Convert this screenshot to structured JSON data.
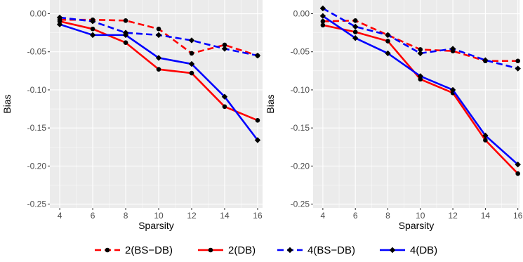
{
  "chart_data": [
    {
      "type": "line",
      "xlabel": "Sparsity",
      "ylabel": "Bias",
      "x": [
        4,
        6,
        8,
        10,
        12,
        14,
        16
      ],
      "xlim": [
        3.4,
        16.3
      ],
      "ylim": [
        -0.255,
        0.018
      ],
      "yticks": [
        0.0,
        -0.05,
        -0.1,
        -0.15,
        -0.2,
        -0.25
      ],
      "ytick_labels": [
        "0.00",
        "-0.05",
        "-0.10",
        "-0.15",
        "-0.20",
        "-0.25"
      ],
      "xtick_labels": [
        "4",
        "6",
        "8",
        "10",
        "12",
        "14",
        "16"
      ],
      "grid": true,
      "series": [
        {
          "name": "2(BS−DB)",
          "color": "#ff0000",
          "dash": "dashed",
          "marker": "circle",
          "values": [
            -0.008,
            -0.008,
            -0.009,
            -0.02,
            -0.052,
            -0.041,
            -0.055
          ]
        },
        {
          "name": "2(DB)",
          "color": "#ff0000",
          "dash": "solid",
          "marker": "circle",
          "values": [
            -0.01,
            -0.02,
            -0.038,
            -0.073,
            -0.078,
            -0.122,
            -0.14
          ]
        },
        {
          "name": "4(BS−DB)",
          "color": "#0000ff",
          "dash": "dashed",
          "marker": "diamond",
          "values": [
            -0.005,
            -0.01,
            -0.025,
            -0.028,
            -0.035,
            -0.046,
            -0.055
          ]
        },
        {
          "name": "4(DB)",
          "color": "#0000ff",
          "dash": "solid",
          "marker": "diamond",
          "values": [
            -0.014,
            -0.028,
            -0.028,
            -0.058,
            -0.066,
            -0.109,
            -0.166
          ]
        }
      ]
    },
    {
      "type": "line",
      "xlabel": "Sparsity",
      "ylabel": "Bias",
      "x": [
        4,
        6,
        8,
        10,
        12,
        14,
        16
      ],
      "xlim": [
        3.4,
        16.1
      ],
      "ylim": [
        -0.255,
        0.018
      ],
      "yticks": [
        0.0,
        -0.05,
        -0.1,
        -0.15,
        -0.2,
        -0.25
      ],
      "ytick_labels": [
        "0.00",
        "-0.05",
        "-0.10",
        "-0.15",
        "-0.20",
        "-0.25"
      ],
      "xtick_labels": [
        "4",
        "6",
        "8",
        "10",
        "12",
        "14",
        "16"
      ],
      "grid": true,
      "series": [
        {
          "name": "2(BS−DB)",
          "color": "#ff0000",
          "dash": "dashed",
          "marker": "circle",
          "values": [
            -0.01,
            -0.009,
            -0.028,
            -0.047,
            -0.049,
            -0.062,
            -0.062
          ]
        },
        {
          "name": "2(DB)",
          "color": "#ff0000",
          "dash": "solid",
          "marker": "circle",
          "values": [
            -0.015,
            -0.024,
            -0.036,
            -0.086,
            -0.104,
            -0.166,
            -0.21
          ]
        },
        {
          "name": "4(BS−DB)",
          "color": "#0000ff",
          "dash": "dashed",
          "marker": "diamond",
          "values": [
            0.007,
            -0.017,
            -0.028,
            -0.052,
            -0.046,
            -0.061,
            -0.072
          ]
        },
        {
          "name": "4(DB)",
          "color": "#0000ff",
          "dash": "solid",
          "marker": "diamond",
          "values": [
            -0.003,
            -0.032,
            -0.052,
            -0.082,
            -0.1,
            -0.16,
            -0.198
          ]
        }
      ]
    }
  ],
  "legend": {
    "placement": "bottom",
    "items": [
      {
        "label": "2(BS−DB)",
        "color": "#ff0000",
        "dash": "dashed",
        "marker": "circle"
      },
      {
        "label": "2(DB)",
        "color": "#ff0000",
        "dash": "solid",
        "marker": "circle"
      },
      {
        "label": "4(BS−DB)",
        "color": "#0000ff",
        "dash": "dashed",
        "marker": "diamond"
      },
      {
        "label": "4(DB)",
        "color": "#0000ff",
        "dash": "solid",
        "marker": "diamond"
      }
    ]
  },
  "colors": {
    "panel_background": "#ebebeb",
    "gridline": "#ffffff"
  }
}
